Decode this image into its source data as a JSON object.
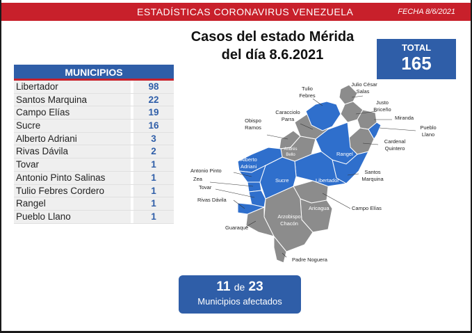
{
  "header": {
    "title": "ESTADÍSTICAS CORONAVIRUS VENEZUELA",
    "date": "FECHA 8/6/2021"
  },
  "main_title": {
    "line1": "Casos del estado Mérida",
    "line2": "del día 8.6.2021"
  },
  "total": {
    "label": "TOTAL",
    "value": "165"
  },
  "table": {
    "header": "MUNICIPIOS",
    "rows": [
      {
        "name": "Libertador",
        "count": "98"
      },
      {
        "name": "Santos Marquina",
        "count": "22"
      },
      {
        "name": "Campo Elías",
        "count": "19"
      },
      {
        "name": "Sucre",
        "count": "16"
      },
      {
        "name": "Alberto Adriani",
        "count": "3"
      },
      {
        "name": "Rivas Dávila",
        "count": "2"
      },
      {
        "name": "Tovar",
        "count": "1"
      },
      {
        "name": "Antonio Pinto Salinas",
        "count": "1"
      },
      {
        "name": "Tulio Febres Cordero",
        "count": "1"
      },
      {
        "name": "Rangel",
        "count": "1"
      },
      {
        "name": "Pueblo Llano",
        "count": "1"
      }
    ]
  },
  "map": {
    "colors": {
      "affected": "#2f6fcc",
      "unaffected": "#8c8c8c"
    },
    "labels": {
      "tulio": [
        "Tulio",
        "Febres"
      ],
      "julio": [
        "Julio César",
        "Salas"
      ],
      "justo": [
        "Justo",
        "Briceño"
      ],
      "miranda": "Miranda",
      "pueblo": [
        "Pueblo",
        "Llano"
      ],
      "caracciolo": [
        "Caracciolo",
        "Parra"
      ],
      "obispo": [
        "Obispo",
        "Ramos"
      ],
      "cardenal": [
        "Cardenal",
        "Quintero"
      ],
      "andres": [
        "Andrés",
        "Bello"
      ],
      "rangel": "Rangel",
      "alberto": [
        "Alberto",
        "Adriani"
      ],
      "antonio": "Antonio Pinto",
      "zea": "Zea",
      "tovar": "Tovar",
      "sucre": "Sucre",
      "libertador": "Libertador",
      "santos": [
        "Santos",
        "Marquina"
      ],
      "rivas": "Rivas Dávila",
      "campo": "Campo Elías",
      "arzobispo": [
        "Arzobispo",
        "Chacón"
      ],
      "aricagua": "Aricagua",
      "guaraque": "Guaraque",
      "padre": "Padre Noguera"
    }
  },
  "affected": {
    "count": "11",
    "de": "de",
    "total": "23",
    "label": "Municipios afectados"
  }
}
